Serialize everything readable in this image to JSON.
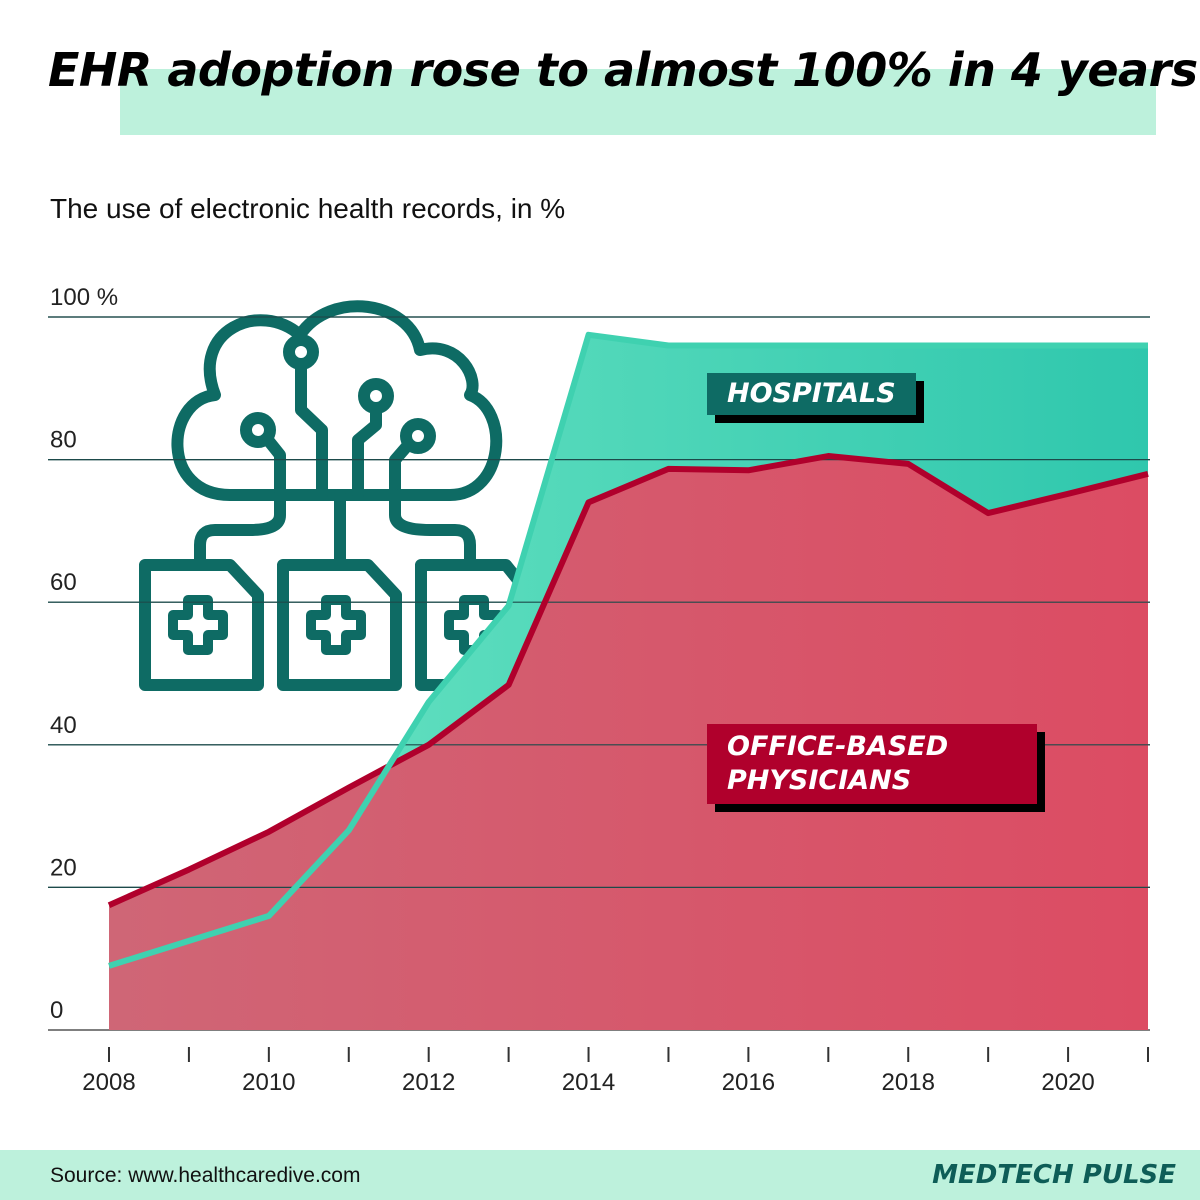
{
  "title": "EHR adoption rose to almost 100% in 4 years",
  "subtitle": "The use of electronic health records, in %",
  "source": "Source: www.healthcaredive.com",
  "brand": "MEDTECH PULSE",
  "icon": "cloud-medical-records-icon",
  "colors": {
    "hospitals": "#3fd1b0",
    "physicians": "#b0002c",
    "physicians_fill": "#d45a6c",
    "accent": "#bdf1dc",
    "icon": "#0e6b64"
  },
  "chart_data": {
    "type": "area",
    "x": [
      2008,
      2009,
      2010,
      2011,
      2012,
      2013,
      2014,
      2015,
      2016,
      2017,
      2018,
      2019,
      2020,
      2021
    ],
    "series": [
      {
        "name": "HOSPITALS",
        "values": [
          9,
          12.5,
          16,
          28,
          46,
          59.5,
          97.5,
          96,
          96,
          96,
          96,
          96,
          96,
          96
        ]
      },
      {
        "name": "OFFICE-BASED PHYSICIANS",
        "values": [
          17.5,
          22.5,
          27.8,
          34,
          40,
          48.4,
          74,
          78.7,
          78.5,
          80.5,
          79.4,
          72.5,
          75.2,
          78
        ]
      }
    ],
    "y_ticks": [
      "100 %",
      "80",
      "60",
      "40",
      "20",
      "0"
    ],
    "y_tick_values": [
      100,
      80,
      60,
      40,
      20,
      0
    ],
    "x_ticks": [
      "2008",
      "2010",
      "2012",
      "2014",
      "2016",
      "2018",
      "2020"
    ],
    "ylim": [
      0,
      100
    ],
    "xlim": [
      2008,
      2021
    ],
    "grid": true
  }
}
